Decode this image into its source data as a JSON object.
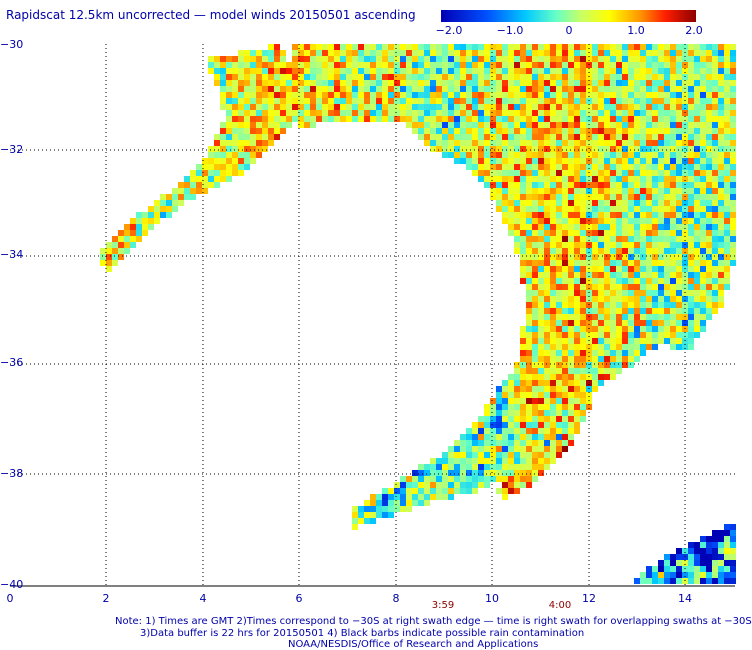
{
  "title": "Rapidscat 12.5km uncorrected — model winds 20150501 ascending",
  "colorbar": {
    "ticks": [
      "−2.0",
      "−1.0",
      "0",
      "1.0",
      "2.0"
    ],
    "values": [
      -2.0,
      -1.0,
      0,
      1.0,
      2.0
    ]
  },
  "y_axis": {
    "ticks": [
      "−30",
      "−32",
      "−34",
      "−36",
      "−38",
      "−40"
    ]
  },
  "x_axis": {
    "ticks": [
      "0",
      "2",
      "4",
      "6",
      "8",
      "10",
      "12",
      "14"
    ]
  },
  "times": [
    "3:59",
    "4:00"
  ],
  "notes": {
    "line1": "Note: 1) Times are GMT 2)Times correspond to −30S at right swath edge — time is right swath for overlapping swaths at −30S",
    "line2": "3)Data buffer is 22 hrs for 20150501 4) Black barbs indicate possible rain contamination",
    "line3": "NOAA/NESDIS/Office of Research and Applications"
  },
  "colors": {
    "text": "#0000aa",
    "time_text": "#8b0000",
    "grid": "#000000"
  }
}
